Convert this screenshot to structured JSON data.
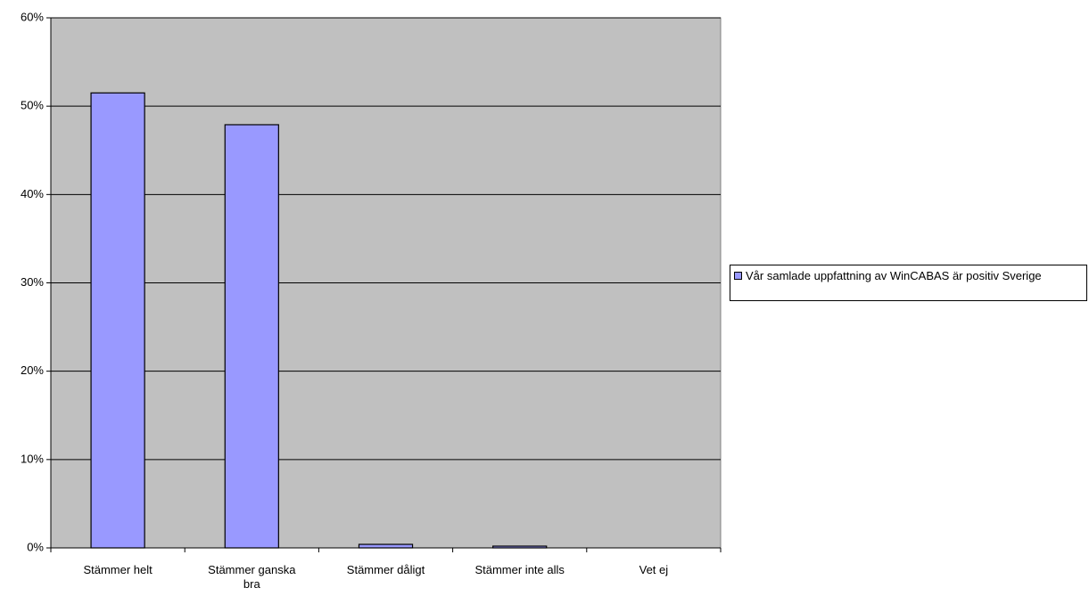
{
  "chart_data": {
    "type": "bar",
    "categories": [
      "Stämmer helt",
      "Stämmer ganska bra",
      "Stämmer dåligt",
      "Stämmer inte alls",
      "Vet ej"
    ],
    "series": [
      {
        "name": "Vår samlade uppfattning av WinCABAS är positiv Sverige",
        "color": "#9999ff",
        "values": [
          51.5,
          47.9,
          0.4,
          0.2,
          0
        ]
      }
    ],
    "ylim": [
      0,
      60
    ],
    "yticks": [
      {
        "value": 0,
        "label": "0%"
      },
      {
        "value": 10,
        "label": "10%"
      },
      {
        "value": 20,
        "label": "20%"
      },
      {
        "value": 30,
        "label": "30%"
      },
      {
        "value": 40,
        "label": "40%"
      },
      {
        "value": 50,
        "label": "50%"
      },
      {
        "value": 60,
        "label": "60%"
      }
    ],
    "grid": true,
    "plot_background": "#c0c0c0",
    "legend": "right"
  }
}
